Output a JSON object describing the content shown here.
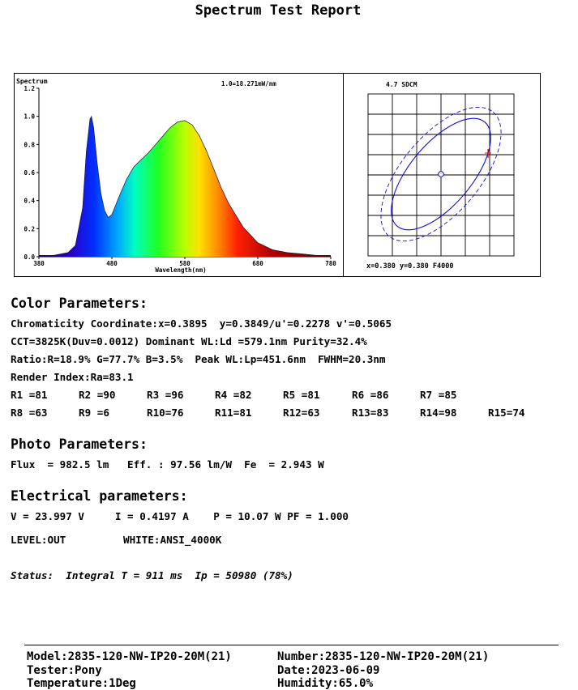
{
  "title": "Spectrum Test Report",
  "spectrum_panel": {
    "label": "Spectrum",
    "scale_note": "1.0=18.271mW/nm",
    "xlabel": "Wavelength(nm)",
    "x_ticks": [
      "380",
      "480",
      "580",
      "680",
      "780"
    ],
    "y_ticks": [
      "0.0",
      "0.2",
      "0.4",
      "0.6",
      "0.8",
      "1.0",
      "1.2"
    ]
  },
  "sdcm_panel": {
    "label": "4.7 SDCM",
    "coord_text": "x=0.380 y=0.380 F4000"
  },
  "color_parameters": {
    "heading": "Color Parameters:",
    "chromaticity": "Chromaticity Coordinate:x=0.3895  y=0.3849/u'=0.2278 v'=0.5065",
    "cct": "CCT=3825K(Duv=0.0012) Dominant WL:Ld =579.1nm Purity=32.4%",
    "ratio": "Ratio:R=18.9% G=77.7% B=3.5%  Peak WL:Lp=451.6nm  FWHM=20.3nm",
    "render_index": "Render Index:Ra=83.1",
    "r_row1": [
      "R1 =81",
      "R2 =90",
      "R3 =96",
      "R4 =82",
      "R5 =81",
      "R6 =86",
      "R7 =85"
    ],
    "r_row2": [
      "R8 =63",
      "R9 =6",
      "R10=76",
      "R11=81",
      "R12=63",
      "R13=83",
      "R14=98",
      "R15=74"
    ]
  },
  "photo_parameters": {
    "heading": "Photo Parameters:",
    "line": "Flux  = 982.5 lm   Eff. : 97.56 lm/W  Fe  = 2.943 W"
  },
  "electrical_parameters": {
    "heading": "Electrical parameters:",
    "line1": "V = 23.997 V     I = 0.4197 A    P = 10.07 W PF = 1.000",
    "level": "LEVEL:OUT",
    "white": "WHITE:ANSI_4000K"
  },
  "status": "Status:  Integral T = 911 ms  Ip = 50980 (78%)",
  "footer": {
    "model": "Model:2835-120-NW-IP20-20M(21)",
    "number": "Number:2835-120-NW-IP20-20M(21)",
    "tester": "Tester:Pony",
    "date": "Date:2023-06-09",
    "temperature": "Temperature:1Deg",
    "humidity": "Humidity:65.0%"
  },
  "chart_data": {
    "type": "area",
    "title": "Spectrum",
    "xlabel": "Wavelength(nm)",
    "ylabel": "",
    "xlim": [
      380,
      780
    ],
    "ylim": [
      0,
      1.2
    ],
    "x": [
      380,
      400,
      420,
      430,
      440,
      445,
      450,
      452,
      455,
      460,
      465,
      470,
      475,
      480,
      490,
      500,
      510,
      520,
      530,
      540,
      550,
      560,
      570,
      580,
      590,
      600,
      610,
      620,
      630,
      640,
      660,
      680,
      700,
      720,
      740,
      760,
      780
    ],
    "values": [
      0.01,
      0.01,
      0.03,
      0.08,
      0.35,
      0.75,
      0.98,
      1.0,
      0.92,
      0.66,
      0.45,
      0.33,
      0.28,
      0.3,
      0.43,
      0.55,
      0.64,
      0.69,
      0.74,
      0.8,
      0.86,
      0.92,
      0.96,
      0.97,
      0.94,
      0.86,
      0.75,
      0.62,
      0.49,
      0.38,
      0.21,
      0.1,
      0.05,
      0.03,
      0.02,
      0.01,
      0.01
    ]
  }
}
